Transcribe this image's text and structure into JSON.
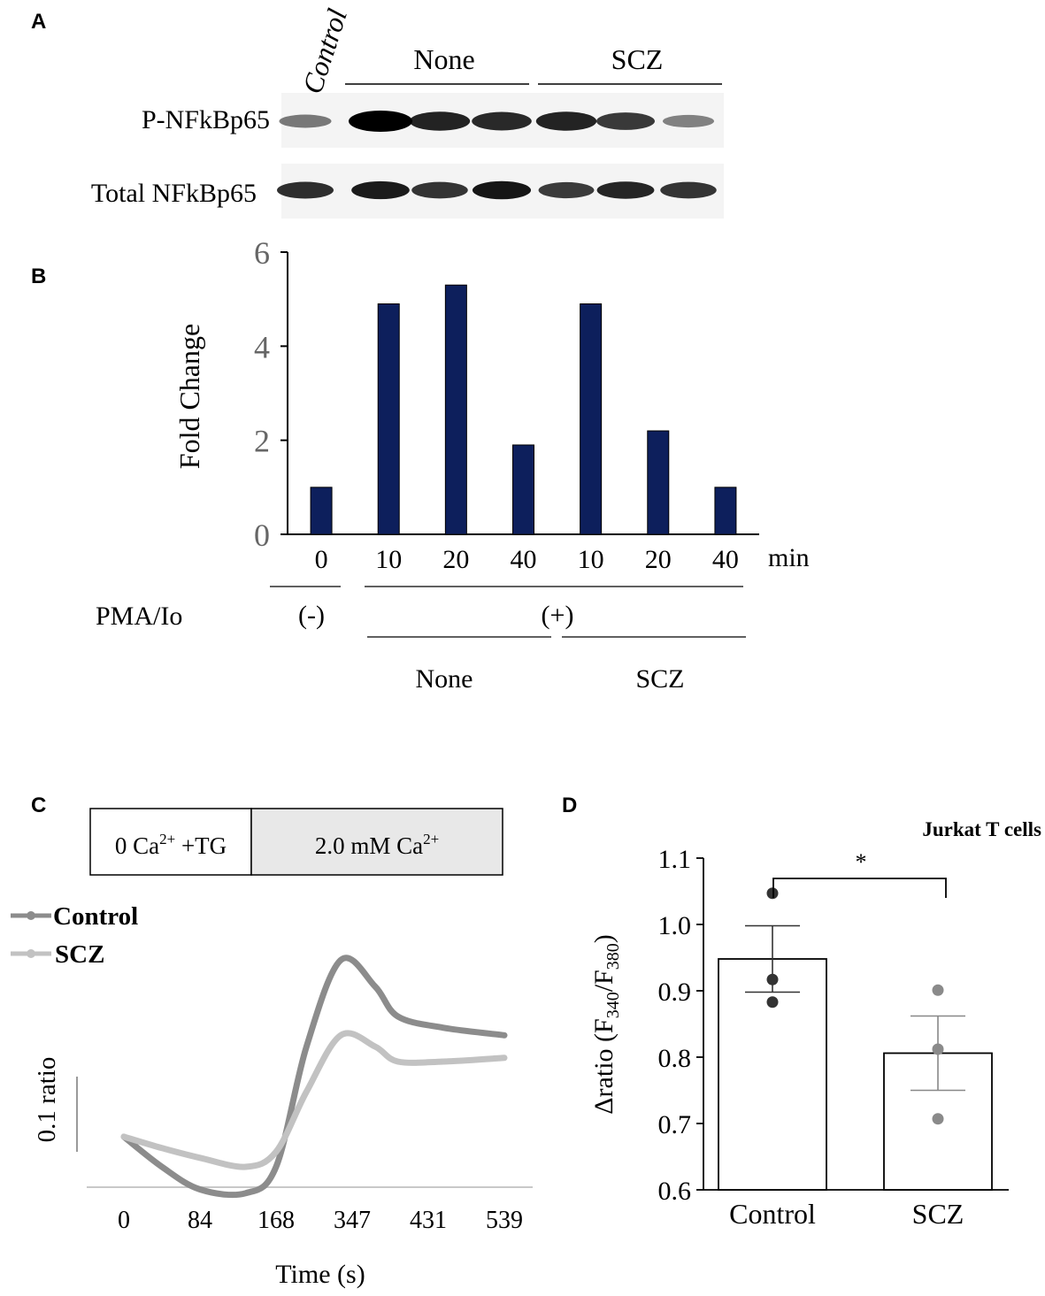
{
  "panels": {
    "a": {
      "letter": "A",
      "lane_control_label": "Control",
      "group_none_label": "None",
      "group_scz_label": "SCZ",
      "row_phospho_label": "P-NFkBp65",
      "row_total_label": "Total NFkBp65",
      "band_intensity_phospho": [
        0.35,
        1.0,
        0.82,
        0.78,
        0.82,
        0.7,
        0.3
      ],
      "band_intensity_total": [
        0.75,
        0.85,
        0.72,
        0.88,
        0.68,
        0.8,
        0.72
      ]
    },
    "b": {
      "letter": "B",
      "time_unit": "min",
      "treatment_label": "PMA/Io",
      "treatment_minus": "(-)",
      "treatment_plus": "(+)",
      "group_none_label": "None",
      "group_scz_label": "SCZ"
    },
    "c": {
      "letter": "C",
      "phase1_main": "0 Ca",
      "phase1_sup": "2+",
      "phase1_tail": " +TG",
      "phase2_main": "2.0 mM Ca",
      "phase2_sup": "2+",
      "scale_bar_label": "0.1 ratio",
      "colors": {
        "control": "#8c8c8c",
        "scz": "#c2c2c2"
      }
    },
    "d": {
      "letter": "D",
      "subtitle": "Jurkat T cells",
      "ylabel_prefix": "Δratio (F",
      "ylabel_sub1": "340",
      "ylabel_mid": "/F",
      "ylabel_sub2": "380",
      "ylabel_suffix": ")",
      "significance": "*"
    }
  },
  "chart_data": [
    {
      "panel": "B",
      "type": "bar",
      "ylabel": "Fold Change",
      "xlabel": "min",
      "categories": [
        "0",
        "10",
        "20",
        "40",
        "10",
        "20",
        "40"
      ],
      "groups": [
        "Control (-)",
        "None",
        "None",
        "None",
        "SCZ",
        "SCZ",
        "SCZ"
      ],
      "values": [
        1.0,
        4.9,
        5.3,
        1.9,
        4.9,
        2.2,
        1.0
      ],
      "ylim": [
        0,
        6
      ],
      "yticks": [
        0,
        2,
        4,
        6
      ],
      "color": "#0d1f5c"
    },
    {
      "panel": "C",
      "type": "line",
      "xlabel": "Time (s)",
      "ylabel": "",
      "x": [
        0,
        84,
        168,
        347,
        431,
        539
      ],
      "x_tick_labels": [
        "0",
        "84",
        "168",
        "347",
        "431",
        "539"
      ],
      "series": [
        {
          "name": "Control",
          "points": [
            [
              0,
              0.0
            ],
            [
              0.5,
              -0.04
            ],
            [
              1.0,
              -0.07
            ],
            [
              1.6,
              -0.075
            ],
            [
              2.0,
              -0.04
            ],
            [
              2.4,
              0.12
            ],
            [
              2.85,
              0.235
            ],
            [
              3.3,
              0.2
            ],
            [
              3.6,
              0.16
            ],
            [
              4.2,
              0.145
            ],
            [
              5.0,
              0.135
            ]
          ]
        },
        {
          "name": "SCZ",
          "points": [
            [
              0,
              0.0
            ],
            [
              0.5,
              -0.015
            ],
            [
              1.0,
              -0.028
            ],
            [
              1.6,
              -0.04
            ],
            [
              2.0,
              -0.02
            ],
            [
              2.4,
              0.06
            ],
            [
              2.85,
              0.135
            ],
            [
              3.3,
              0.12
            ],
            [
              3.6,
              0.1
            ],
            [
              4.2,
              0.1
            ],
            [
              5.0,
              0.105
            ]
          ]
        }
      ],
      "y_baseline": -0.075,
      "scale_bar": 0.1
    },
    {
      "panel": "D",
      "type": "bar",
      "categories": [
        "Control",
        "SCZ"
      ],
      "values": [
        0.948,
        0.806
      ],
      "sem": [
        0.05,
        0.056
      ],
      "points": [
        [
          1.047,
          0.917,
          0.883
        ],
        [
          0.901,
          0.812,
          0.707
        ]
      ],
      "ylim": [
        0.6,
        1.1
      ],
      "yticks": [
        0.6,
        0.7,
        0.8,
        0.9,
        1.0,
        1.1
      ],
      "ytick_labels": [
        "0.6",
        "0.7",
        "0.8",
        "0.9",
        "1.0",
        "1.1"
      ],
      "point_colors": [
        "#333333",
        "#8a8a8a"
      ]
    }
  ]
}
